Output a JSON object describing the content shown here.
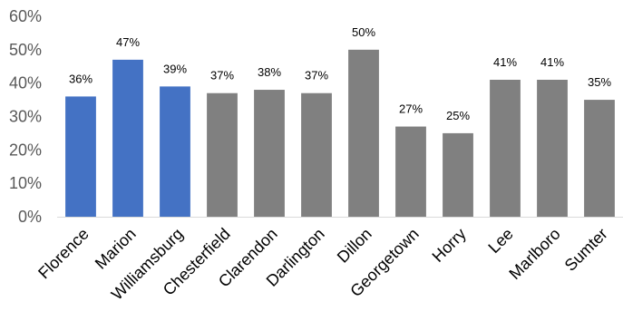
{
  "chart_data": {
    "type": "bar",
    "title": "",
    "xlabel": "",
    "ylabel": "",
    "categories": [
      "Florence",
      "Marion",
      "Williamsburg",
      "Chesterfield",
      "Clarendon",
      "Darlington",
      "Dillon",
      "Georgetown",
      "Horry",
      "Lee",
      "Marlboro",
      "Sumter"
    ],
    "values": [
      36,
      47,
      39,
      37,
      38,
      37,
      50,
      27,
      25,
      41,
      41,
      35
    ],
    "value_labels": [
      "36%",
      "47%",
      "39%",
      "37%",
      "38%",
      "37%",
      "50%",
      "27%",
      "25%",
      "41%",
      "41%",
      "35%"
    ],
    "bar_colors": [
      "#4472C4",
      "#4472C4",
      "#4472C4",
      "#808080",
      "#808080",
      "#808080",
      "#808080",
      "#808080",
      "#808080",
      "#808080",
      "#808080",
      "#808080"
    ],
    "ylim": [
      0,
      60
    ],
    "yticks": [
      0,
      10,
      20,
      30,
      40,
      50,
      60
    ],
    "ytick_labels": [
      "0%",
      "10%",
      "20%",
      "30%",
      "40%",
      "50%",
      "60%"
    ],
    "grid": false,
    "legend": "none"
  },
  "colors": {
    "highlight": "#4472C4",
    "default": "#808080",
    "axis": "#D9D9D9"
  }
}
